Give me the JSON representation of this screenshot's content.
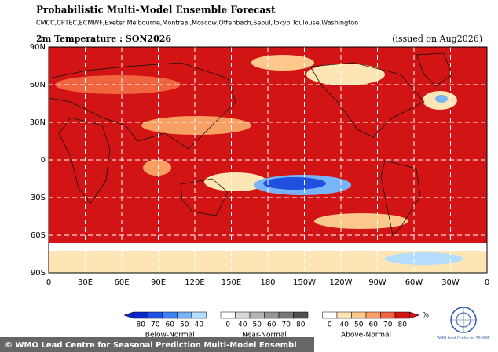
{
  "header": {
    "title": "Probabilistic Multi-Model Ensemble Forecast",
    "models": "CMCC,CPTEC,ECMWF,Exeter,Melbourne,Montreal,Moscow,Offenbach,Seoul,Tokyo,Toulouse,Washington",
    "subtitle": "2m Temperature : SON2026",
    "issued": "(issued on Aug2026)"
  },
  "map": {
    "lat_labels": [
      "90N",
      "60N",
      "30N",
      "0",
      "30S",
      "60S",
      "90S"
    ],
    "lon_labels": [
      "0",
      "30E",
      "60E",
      "90E",
      "120E",
      "150E",
      "180",
      "150W",
      "120W",
      "90W",
      "60W",
      "30W",
      "0"
    ]
  },
  "colorbar": {
    "unit": "%",
    "groups": [
      {
        "name": "Below-Normal",
        "ticks": [
          80,
          70,
          60,
          50,
          40
        ],
        "colors": [
          "#0a28c8",
          "#2050e0",
          "#3c82f0",
          "#78b4f8",
          "#b4dcfc"
        ]
      },
      {
        "name": "Near-Normal",
        "ticks": [
          0,
          40,
          50,
          60,
          70,
          80
        ],
        "colors": [
          "#ffffff",
          "#d8d8d8",
          "#b4b4b4",
          "#969696",
          "#787878",
          "#505050"
        ]
      },
      {
        "name": "Above-Normal",
        "ticks": [
          0,
          40,
          50,
          60,
          70,
          80
        ],
        "colors": [
          "#ffffff",
          "#fde6b4",
          "#fcc88c",
          "#f8a064",
          "#f06440",
          "#d21414"
        ]
      }
    ]
  },
  "footer": {
    "credit": "© WMO Lead Centre for Seasonal Prediction Multi-Model Ensembl",
    "logo_text": "WMO Lead Centre for SP-MME"
  }
}
